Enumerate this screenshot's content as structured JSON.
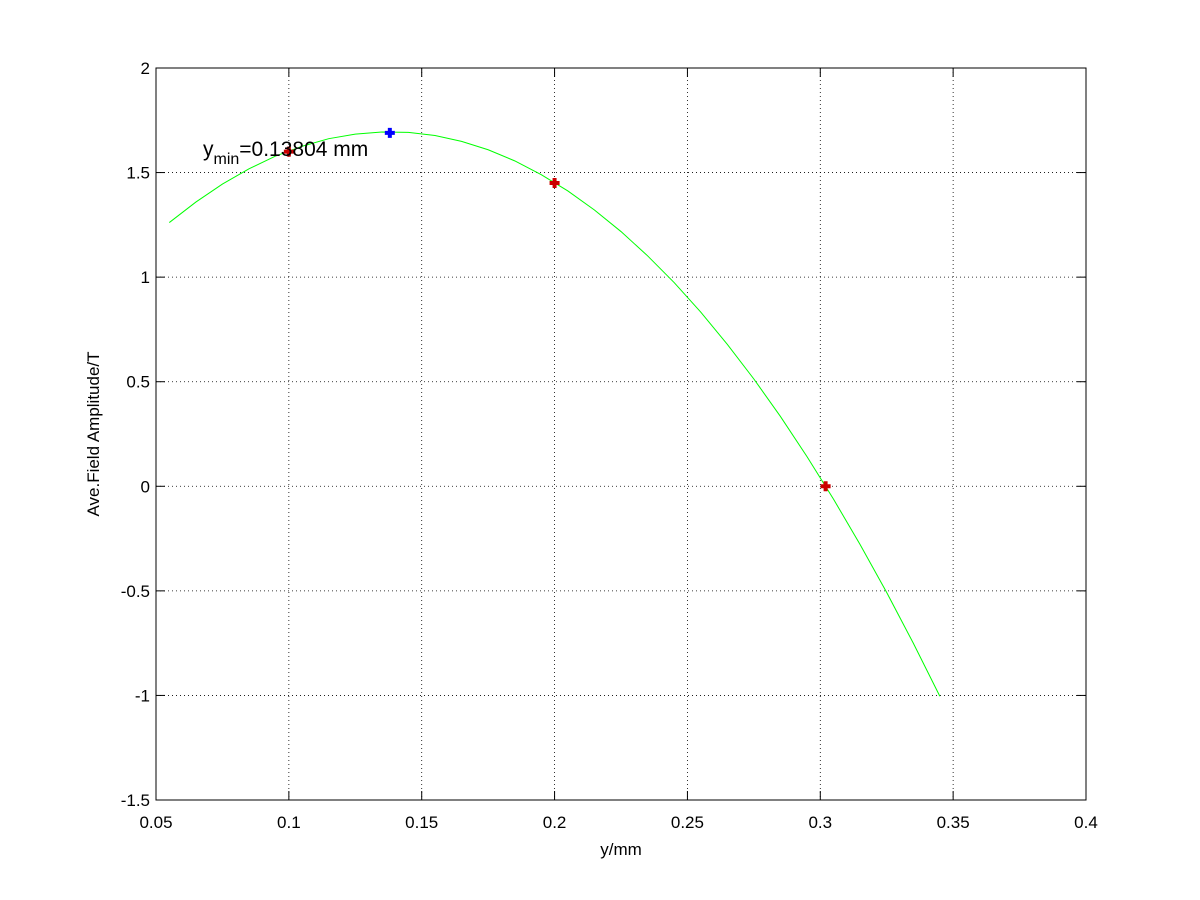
{
  "chart_data": {
    "type": "line",
    "xlabel": "y/mm",
    "ylabel": "Ave.Field Amplitude/T",
    "xlim": [
      0.05,
      0.4
    ],
    "xticks": [
      0.05,
      0.1,
      0.15,
      0.2,
      0.25,
      0.3,
      0.35,
      0.4
    ],
    "ylim": [
      -1.5,
      2
    ],
    "yticks": [
      -1.5,
      -1,
      -0.5,
      0,
      0.5,
      1,
      1.5,
      2
    ],
    "grid": true,
    "annotation": {
      "base": "y",
      "subscript": "min",
      "text": "=0.13804 mm"
    },
    "series": [
      {
        "style": "line",
        "color": "#00ff00",
        "x": [
          0.055,
          0.065,
          0.075,
          0.085,
          0.095,
          0.105,
          0.115,
          0.125,
          0.135,
          0.145,
          0.155,
          0.165,
          0.175,
          0.185,
          0.195,
          0.205,
          0.215,
          0.225,
          0.235,
          0.245,
          0.255,
          0.265,
          0.275,
          0.285,
          0.295,
          0.305,
          0.315,
          0.325,
          0.335,
          0.345
        ],
        "values": [
          1.261,
          1.359,
          1.445,
          1.518,
          1.579,
          1.626,
          1.662,
          1.684,
          1.694,
          1.692,
          1.677,
          1.649,
          1.609,
          1.556,
          1.49,
          1.412,
          1.321,
          1.218,
          1.102,
          0.974,
          0.833,
          0.679,
          0.513,
          0.334,
          0.142,
          -0.062,
          -0.279,
          -0.508,
          -0.75,
          -1.004
        ]
      },
      {
        "style": "marker",
        "color": "#cc0000",
        "x": [
          0.1,
          0.2,
          0.302
        ],
        "values": [
          1.6,
          1.45,
          0.0
        ]
      },
      {
        "style": "marker",
        "color": "#0000ff",
        "x": [
          0.138
        ],
        "values": [
          1.69
        ]
      }
    ]
  }
}
